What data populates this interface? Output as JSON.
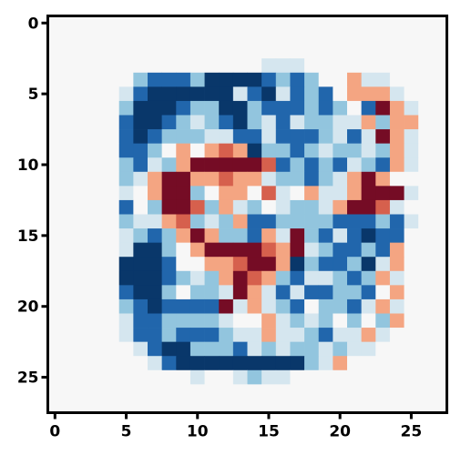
{
  "chart_data": {
    "type": "heatmap",
    "title": "",
    "xlabel": "",
    "ylabel": "",
    "x_ticks": [
      "0",
      "5",
      "10",
      "15",
      "20",
      "25"
    ],
    "y_ticks": [
      "0",
      "5",
      "10",
      "15",
      "20",
      "25"
    ],
    "grid": false,
    "colormap": "RdBu_r",
    "value_range": [
      -1,
      1
    ],
    "rows": 28,
    "cols": 28,
    "cells": [
      "                            ",
      "                            ",
      "                            ",
      "               ...          ",
      "      +ooo+OOOOo+o+  -..     ",
      "     .oOOOOOO.oO.o+o ---.    ",
      "     +OOOo++OO+ooo+o+ o#-.   ",
      "     oOOo+.+oO+.o.++..-+--   ",
      "     oOo+++..oo.ooo+.o.#-.   ",
      "     oo+ - -=-O++o+.++.+-.   ",
      "     +o.+-#####=o+o+o.+o-.   ",
      "     +.-##--=--.++o+.-#-     ",
      "     . -##+ -- =. -..-###.   ",
      "     o +##=+-.+ .++.-##=.   ",
      "     +..-=+.+-oo++++ooo+o.   ",
      "     .+o+-#-++o-.#+o.oOoo    ",
      "     .OO+ -####=-#.+oo+o-    ",
      "     OOOo  --=##-O+oo+O.-    ",
      "     OOOo+.+-#=-+o..+o+-.    ",
      "     oOO+ ++.#-.o.oo++o -    ",
      "     +oOoooo#.-.+o ++o.-.    ",
      "     .oo++++.  -.+.+ + +-    ",
      "     .oo+ooo+..-..+o..-.     ",
      "      .oOO+++o.+.++.+..      ",
      "       .oOOOOOOOOO+.-        ",
      "          .  .+..           ",
      "                            ",
      "                            "
    ]
  }
}
